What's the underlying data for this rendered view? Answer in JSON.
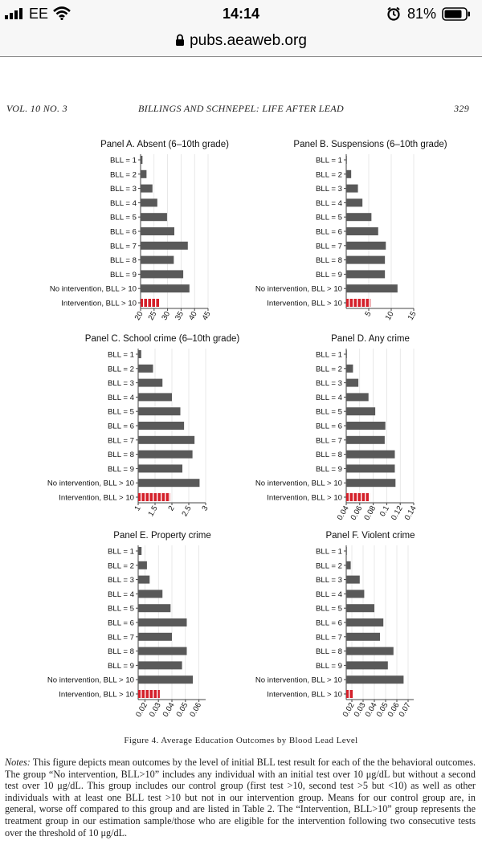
{
  "status_bar": {
    "carrier": "EE",
    "time": "14:14",
    "battery": "81%"
  },
  "browser": {
    "url": "pubs.aeaweb.org"
  },
  "page_header": {
    "volume": "VOL. 10 NO. 3",
    "running_title": "BILLINGS AND SCHNEPEL: LIFE AFTER LEAD",
    "page_number": "329"
  },
  "chart_data": [
    {
      "type": "bar",
      "title": "Panel A. Absent (6–10th grade)",
      "categories": [
        "BLL = 1",
        "BLL = 2",
        "BLL = 3",
        "BLL = 4",
        "BLL = 5",
        "BLL = 6",
        "BLL = 7",
        "BLL = 8",
        "BLL = 9",
        "No intervention, BLL > 10",
        "Intervention, BLL > 10"
      ],
      "values": [
        20.7,
        22.2,
        24.4,
        26.2,
        29.8,
        32.5,
        37.5,
        32.3,
        35.8,
        38.1,
        27.0
      ],
      "xlim": [
        20,
        45
      ],
      "xticks": [
        "20",
        "25",
        "30",
        "35",
        "40",
        "45"
      ]
    },
    {
      "type": "bar",
      "title": "Panel B. Suspensions (6–10th grade)",
      "categories": [
        "BLL = 1",
        "BLL = 2",
        "BLL = 3",
        "BLL = 4",
        "BLL = 5",
        "BLL = 6",
        "BLL = 7",
        "BLL = 8",
        "BLL = 9",
        "No intervention, BLL > 10",
        "Intervention, BLL > 10"
      ],
      "values": [
        0.0,
        1.1,
        2.6,
        3.6,
        5.6,
        7.1,
        8.8,
        8.6,
        8.6,
        11.4,
        5.4
      ],
      "xlim": [
        0,
        15
      ],
      "xticks": [
        "5",
        "10",
        "15"
      ]
    },
    {
      "type": "bar",
      "title": "Panel C. School crime (6–10th grade)",
      "categories": [
        "BLL = 1",
        "BLL = 2",
        "BLL = 3",
        "BLL = 4",
        "BLL = 5",
        "BLL = 6",
        "BLL = 7",
        "BLL = 8",
        "BLL = 9",
        "No intervention, BLL > 10",
        "Intervention, BLL > 10"
      ],
      "values": [
        1.09,
        1.44,
        1.72,
        2.0,
        2.25,
        2.36,
        2.67,
        2.61,
        2.31,
        2.82,
        1.95
      ],
      "xlim": [
        1,
        3
      ],
      "xticks": [
        "1",
        "1.5",
        "2",
        "2.5",
        "3"
      ]
    },
    {
      "type": "bar",
      "title": "Panel D. Any crime",
      "categories": [
        "BLL = 1",
        "BLL = 2",
        "BLL = 3",
        "BLL = 4",
        "BLL = 5",
        "BLL = 6",
        "BLL = 7",
        "BLL = 8",
        "BLL = 9",
        "No intervention, BLL > 10",
        "Intervention, BLL > 10"
      ],
      "values": [
        0.041,
        0.05,
        0.058,
        0.073,
        0.083,
        0.098,
        0.097,
        0.112,
        0.112,
        0.113,
        0.075
      ],
      "xlim": [
        0.04,
        0.14
      ],
      "xticks": [
        "0.04",
        "0.06",
        "0.08",
        "0.1",
        "0.12",
        "0.14"
      ]
    },
    {
      "type": "bar",
      "title": "Panel E. Property crime",
      "categories": [
        "BLL = 1",
        "BLL = 2",
        "BLL = 3",
        "BLL = 4",
        "BLL = 5",
        "BLL = 6",
        "BLL = 7",
        "BLL = 8",
        "BLL = 9",
        "No intervention, BLL > 10",
        "Intervention, BLL > 10"
      ],
      "values": [
        0.0175,
        0.0215,
        0.0235,
        0.033,
        0.039,
        0.051,
        0.04,
        0.051,
        0.0475,
        0.0555,
        0.031
      ],
      "xlim": [
        0.015,
        0.065
      ],
      "xticks": [
        "0.02",
        "0.03",
        "0.04",
        "0.05",
        "0.06"
      ]
    },
    {
      "type": "bar",
      "title": "Panel F. Violent crime",
      "categories": [
        "BLL = 1",
        "BLL = 2",
        "BLL = 3",
        "BLL = 4",
        "BLL = 5",
        "BLL = 6",
        "BLL = 7",
        "BLL = 8",
        "BLL = 9",
        "No intervention, BLL > 10",
        "Intervention, BLL > 10"
      ],
      "values": [
        0.015,
        0.019,
        0.027,
        0.031,
        0.04,
        0.048,
        0.045,
        0.057,
        0.052,
        0.066,
        0.021
      ],
      "xlim": [
        0.015,
        0.075
      ],
      "xticks": [
        "0.02",
        "0.03",
        "0.04",
        "0.05",
        "0.06",
        "0.07"
      ]
    }
  ],
  "figure": {
    "caption": "Figure 4. Average Education Outcomes by Blood Lead Level",
    "notes_label": "Notes:",
    "notes_text": "This figure depicts mean outcomes by the level of initial BLL test result for each of the the behavioral outcomes. The group “No intervention, BLL>10” includes any individual with an initial test over 10 μg/dL but without a second test over 10 μg/dL. This group includes our control group (first test >10, second test >5 but <10) as well as other individuals with at least one BLL test >10 but not in our intervention group. Means for our control group are, in general, worse off compared to this group and are listed in Table 2. The “Intervention, BLL>10” group represents the treatment group in our estimation sample/those who are eligible for the intervention following two consecutive tests over the threshold of 10 μg/dL."
  },
  "colors": {
    "bar": "#595959",
    "intervention": "#d4202a",
    "axis": "#444444",
    "grid": "#d9d9d9"
  }
}
